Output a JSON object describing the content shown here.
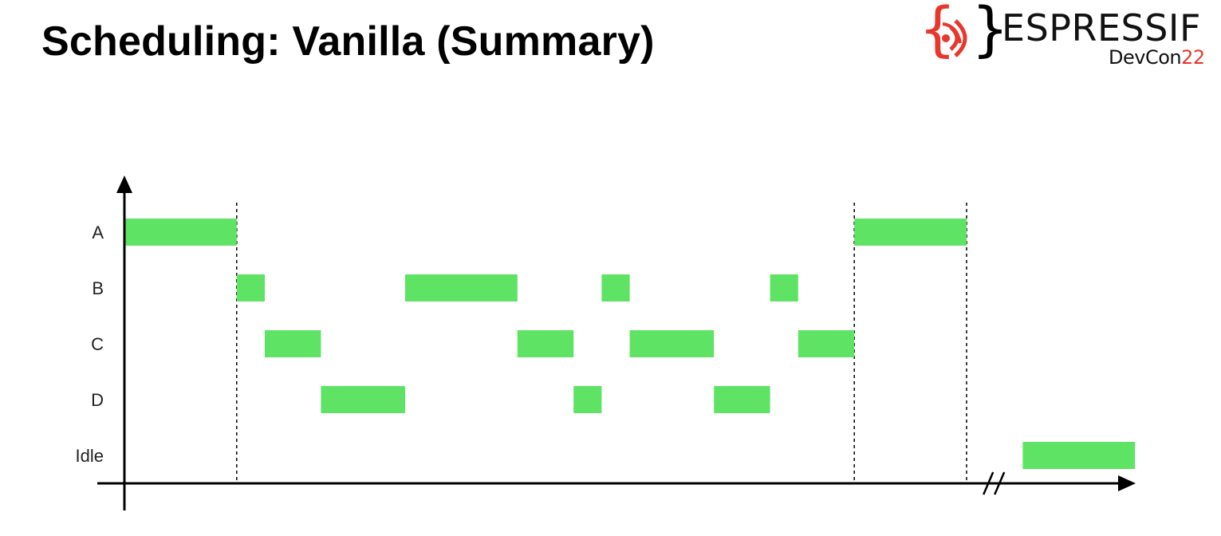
{
  "title": "Scheduling: Vanilla (Summary)",
  "logo": {
    "brand": "ESPRESSIF",
    "event": "DevCon",
    "year": "22"
  },
  "colors": {
    "block": "#5ee365",
    "brand_red": "#e8372c",
    "axis": "#000000"
  },
  "rows": [
    "A",
    "B",
    "C",
    "D",
    "Idle"
  ],
  "segments": [
    {
      "row": "A",
      "start": 0,
      "end": 4
    },
    {
      "row": "B",
      "start": 4,
      "end": 5
    },
    {
      "row": "C",
      "start": 5,
      "end": 7
    },
    {
      "row": "D",
      "start": 7,
      "end": 10
    },
    {
      "row": "B",
      "start": 10,
      "end": 14
    },
    {
      "row": "C",
      "start": 14,
      "end": 16
    },
    {
      "row": "D",
      "start": 16,
      "end": 17
    },
    {
      "row": "B",
      "start": 17,
      "end": 18
    },
    {
      "row": "C",
      "start": 18,
      "end": 21
    },
    {
      "row": "D",
      "start": 21,
      "end": 23
    },
    {
      "row": "B",
      "start": 23,
      "end": 24
    },
    {
      "row": "C",
      "start": 24,
      "end": 26
    },
    {
      "row": "A",
      "start": 26,
      "end": 30
    },
    {
      "row": "Idle",
      "start": 32,
      "end": 36
    }
  ],
  "markers": [
    4,
    26,
    30
  ],
  "axis_break": 31
}
